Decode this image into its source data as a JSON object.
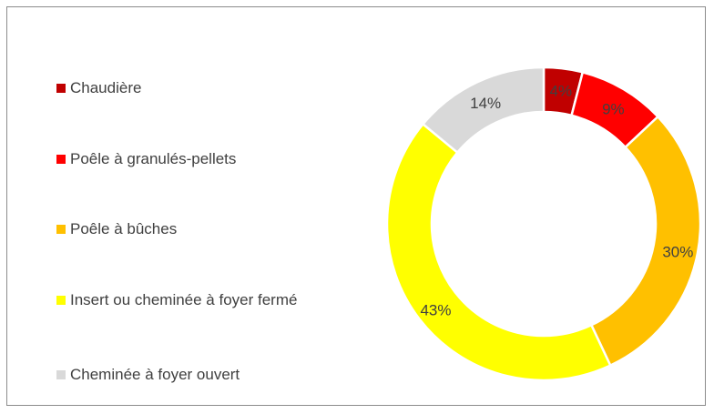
{
  "chart_data": {
    "type": "donut",
    "categories": [
      "Chaudière",
      "Poêle à granulés-pellets",
      "Poêle à bûches",
      "Insert ou cheminée à foyer fermé",
      "Cheminée à foyer ouvert"
    ],
    "values": [
      4,
      9,
      30,
      43,
      14
    ],
    "value_labels": [
      "4%",
      "9%",
      "30%",
      "43%",
      "14%"
    ],
    "colors": [
      "#C00000",
      "#FF0000",
      "#FFC000",
      "#FFFF00",
      "#D9D9D9"
    ],
    "legend": "left"
  }
}
